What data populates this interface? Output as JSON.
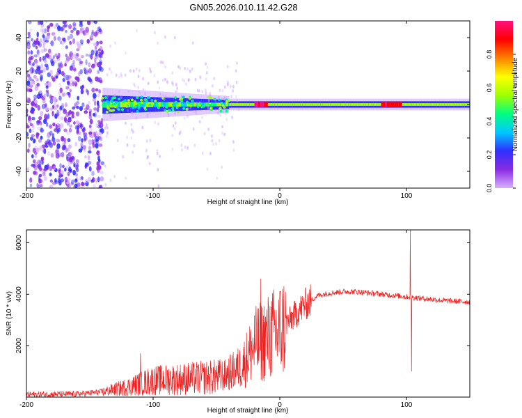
{
  "title": "GN05.2026.010.11.42.G28",
  "chart_data": [
    {
      "type": "heatmap",
      "xlabel": "Height of straight line (km)",
      "ylabel": "Frequency (Hz)",
      "xlim": [
        -200,
        150
      ],
      "ylim": [
        -50,
        50
      ],
      "xticks": [
        -200,
        -100,
        0,
        100
      ],
      "yticks": [
        -40,
        -20,
        0,
        20,
        40
      ],
      "colorbar": {
        "label": "Normalized spectral amplitude",
        "range": [
          0,
          1
        ],
        "ticks": [
          "0.0",
          "0.2",
          "0.4",
          "0.6",
          "0.8"
        ],
        "colormap": [
          "#d8b0ff",
          "#8a2be2",
          "#3030ff",
          "#00c8ff",
          "#00ff80",
          "#a0ff00",
          "#ffff00",
          "#ff8000",
          "#ff0000",
          "#ff1080"
        ]
      },
      "band": {
        "noise_region_x": [
          -200,
          -140
        ],
        "transition_x": [
          -140,
          -40
        ],
        "carrier_freq_hz": 0,
        "hot_segments_x": [
          [
            -20,
            -10
          ],
          [
            80,
            95
          ]
        ]
      }
    },
    {
      "type": "line",
      "xlabel": "Height of straight line (km)",
      "ylabel": "SNR (10 * v/v)",
      "xlim": [
        -200,
        150
      ],
      "ylim": [
        0,
        6500
      ],
      "xticks": [
        -200,
        -100,
        0,
        100
      ],
      "yticks": [
        2000,
        4000,
        6000
      ],
      "series_color": "#ee2222",
      "profile": {
        "x": [
          -200,
          -160,
          -140,
          -120,
          -100,
          -80,
          -60,
          -45,
          -30,
          -20,
          -10,
          0,
          10,
          20,
          30,
          40,
          50,
          60,
          70,
          80,
          90,
          100,
          110,
          120,
          130,
          150
        ],
        "y": [
          100,
          120,
          200,
          400,
          650,
          700,
          750,
          800,
          1200,
          2000,
          2300,
          2600,
          3100,
          3600,
          3950,
          4050,
          4100,
          4100,
          4050,
          4000,
          3950,
          3900,
          3850,
          3800,
          3750,
          3700
        ]
      },
      "spikes": [
        {
          "x": 103,
          "y": 6500
        },
        {
          "x": 104,
          "y": 1000
        },
        {
          "x": -15,
          "y": 4600
        },
        {
          "x": -110,
          "y": 1700
        }
      ]
    }
  ]
}
